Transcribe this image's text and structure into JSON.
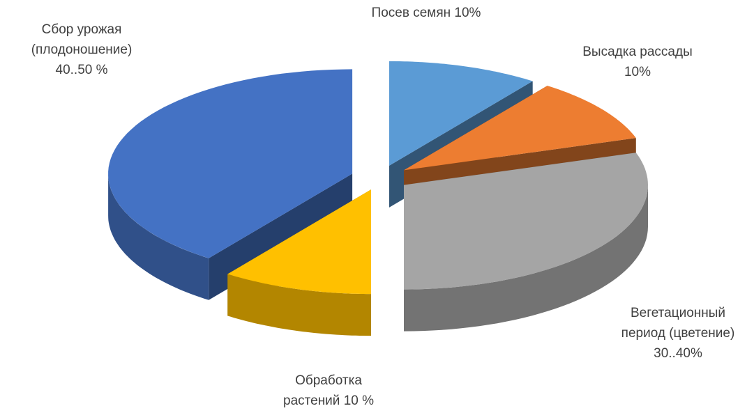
{
  "chart_data": {
    "type": "pie",
    "categories": [
      [
        "Посев семян 10%"
      ],
      [
        "Высадка рассады",
        "10%"
      ],
      [
        "Вегетационный",
        "период (цветение)",
        "30..40%"
      ],
      [
        "Обработка",
        "растений 10 %"
      ],
      [
        "Сбор урожая",
        "(плодоношение)",
        "40..50 %"
      ]
    ],
    "values": [
      10,
      10,
      30,
      10,
      40
    ],
    "colors": [
      "#5b9bd5",
      "#ed7d31",
      "#a5a5a5",
      "#ffc000",
      "#4472c4"
    ]
  }
}
